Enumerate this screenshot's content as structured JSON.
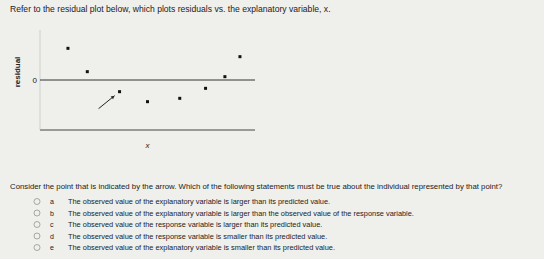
{
  "intro": "Refer to the residual plot below, which plots residuals vs. the explanatory variable, x.",
  "chart_data": {
    "type": "scatter",
    "x_label": "x",
    "y_label": "residual",
    "x": [
      1.3,
      9.3,
      2.2,
      8.6,
      7.7,
      3.7,
      6.5,
      5.0
    ],
    "values": [
      1.9,
      1.4,
      0.5,
      0.2,
      -0.5,
      -0.7,
      -1.1,
      -1.3
    ],
    "xlim": [
      0,
      10
    ],
    "ylim": [
      -3,
      3
    ],
    "xticks": [],
    "yticks": [
      0
    ],
    "tick_labels": "y",
    "color": "#111111",
    "marker": "square"
  },
  "question": "Consider the point that is indicated by the arrow. Which of the following statements must be true about the individual represented by that point?",
  "options": [
    {
      "letter": "a",
      "text": "The observed value of the explanatory variable is larger than its predicted value."
    },
    {
      "letter": "b",
      "text": "The observed value of the explanatory variable is larger than the observed value of the response variable."
    },
    {
      "letter": "c",
      "text": "The observed value of the response variable is larger than its predicted value."
    },
    {
      "letter": "d",
      "text": "The observed value of the response variable is smaller than its predicted value."
    },
    {
      "letter": "e",
      "text": "The observed value of the explanatory variable is smaller than its predicted value."
    }
  ]
}
